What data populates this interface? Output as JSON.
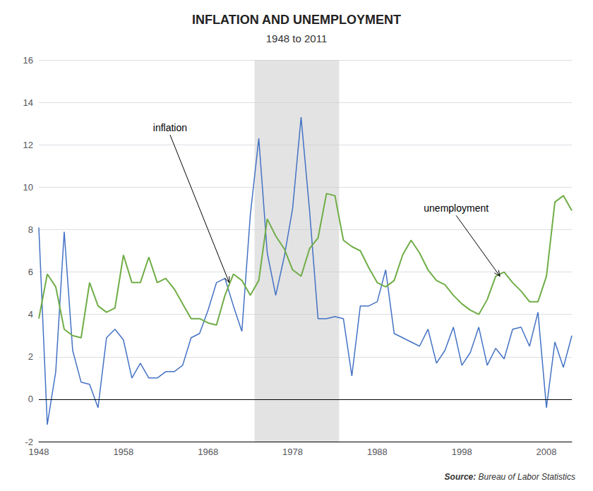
{
  "chart_data": {
    "type": "line",
    "title": "INFLATION AND UNEMPLOYMENT",
    "subtitle": "1948 to 2011",
    "source": {
      "label": "Source:",
      "text": " Bureau of Labor Statistics"
    },
    "x": [
      1948,
      1949,
      1950,
      1951,
      1952,
      1953,
      1954,
      1955,
      1956,
      1957,
      1958,
      1959,
      1960,
      1961,
      1962,
      1963,
      1964,
      1965,
      1966,
      1967,
      1968,
      1969,
      1970,
      1971,
      1972,
      1973,
      1974,
      1975,
      1976,
      1977,
      1978,
      1979,
      1980,
      1981,
      1982,
      1983,
      1984,
      1985,
      1986,
      1987,
      1988,
      1989,
      1990,
      1991,
      1992,
      1993,
      1994,
      1995,
      1996,
      1997,
      1998,
      1999,
      2000,
      2001,
      2002,
      2003,
      2004,
      2005,
      2006,
      2007,
      2008,
      2009,
      2010,
      2011
    ],
    "series": [
      {
        "color": "#4472C4",
        "values": [
          8.1,
          -1.2,
          1.3,
          7.9,
          2.3,
          0.8,
          0.7,
          -0.4,
          2.9,
          3.3,
          2.8,
          1.0,
          1.7,
          1.0,
          1.0,
          1.3,
          1.3,
          1.6,
          2.9,
          3.1,
          4.2,
          5.5,
          5.7,
          4.4,
          3.2,
          8.7,
          12.3,
          6.9,
          4.9,
          6.7,
          9.0,
          13.3,
          8.9,
          3.8,
          3.8,
          3.9,
          3.8,
          1.1,
          4.4,
          4.4,
          4.6,
          6.1,
          3.1,
          2.9,
          2.7,
          2.5,
          3.3,
          1.7,
          2.3,
          3.4,
          1.6,
          2.2,
          3.4,
          1.6,
          2.4,
          1.9,
          3.3,
          3.4,
          2.5,
          4.1,
          -0.4,
          2.7,
          1.5,
          3.0
        ]
      },
      {
        "color": "#70AD47",
        "values": [
          3.8,
          5.9,
          5.3,
          3.3,
          3.0,
          2.9,
          5.5,
          4.4,
          4.1,
          4.3,
          6.8,
          5.5,
          5.5,
          6.7,
          5.5,
          5.7,
          5.2,
          4.5,
          3.8,
          3.8,
          3.6,
          3.5,
          4.9,
          5.9,
          5.6,
          4.9,
          5.6,
          8.5,
          7.7,
          7.1,
          6.1,
          5.8,
          7.1,
          7.6,
          9.7,
          9.6,
          7.5,
          7.2,
          7.0,
          6.2,
          5.5,
          5.3,
          5.6,
          6.8,
          7.5,
          6.9,
          6.1,
          5.6,
          5.4,
          4.9,
          4.5,
          4.2,
          4.0,
          4.7,
          5.8,
          6.0,
          5.5,
          5.1,
          4.6,
          4.6,
          5.8,
          9.3,
          9.6,
          8.9
        ]
      }
    ],
    "xlim": [
      1948,
      2011
    ],
    "xticks": [
      1948,
      1958,
      1968,
      1978,
      1988,
      1998,
      2008
    ],
    "ylim": [
      -2,
      16
    ],
    "yticks": [
      -2,
      0,
      2,
      4,
      6,
      8,
      10,
      12,
      14,
      16
    ],
    "grid": true,
    "shaded_region": [
      1973.5,
      1983.5
    ],
    "annotations": [
      {
        "text": "inflation",
        "x": 1961.5,
        "y": 12.8,
        "arrow_x": 1970.5,
        "arrow_y": 5.5
      },
      {
        "text": "unemployment",
        "x": 1993.5,
        "y": 9.0,
        "arrow_x": 2002.5,
        "arrow_y": 5.8
      }
    ]
  }
}
